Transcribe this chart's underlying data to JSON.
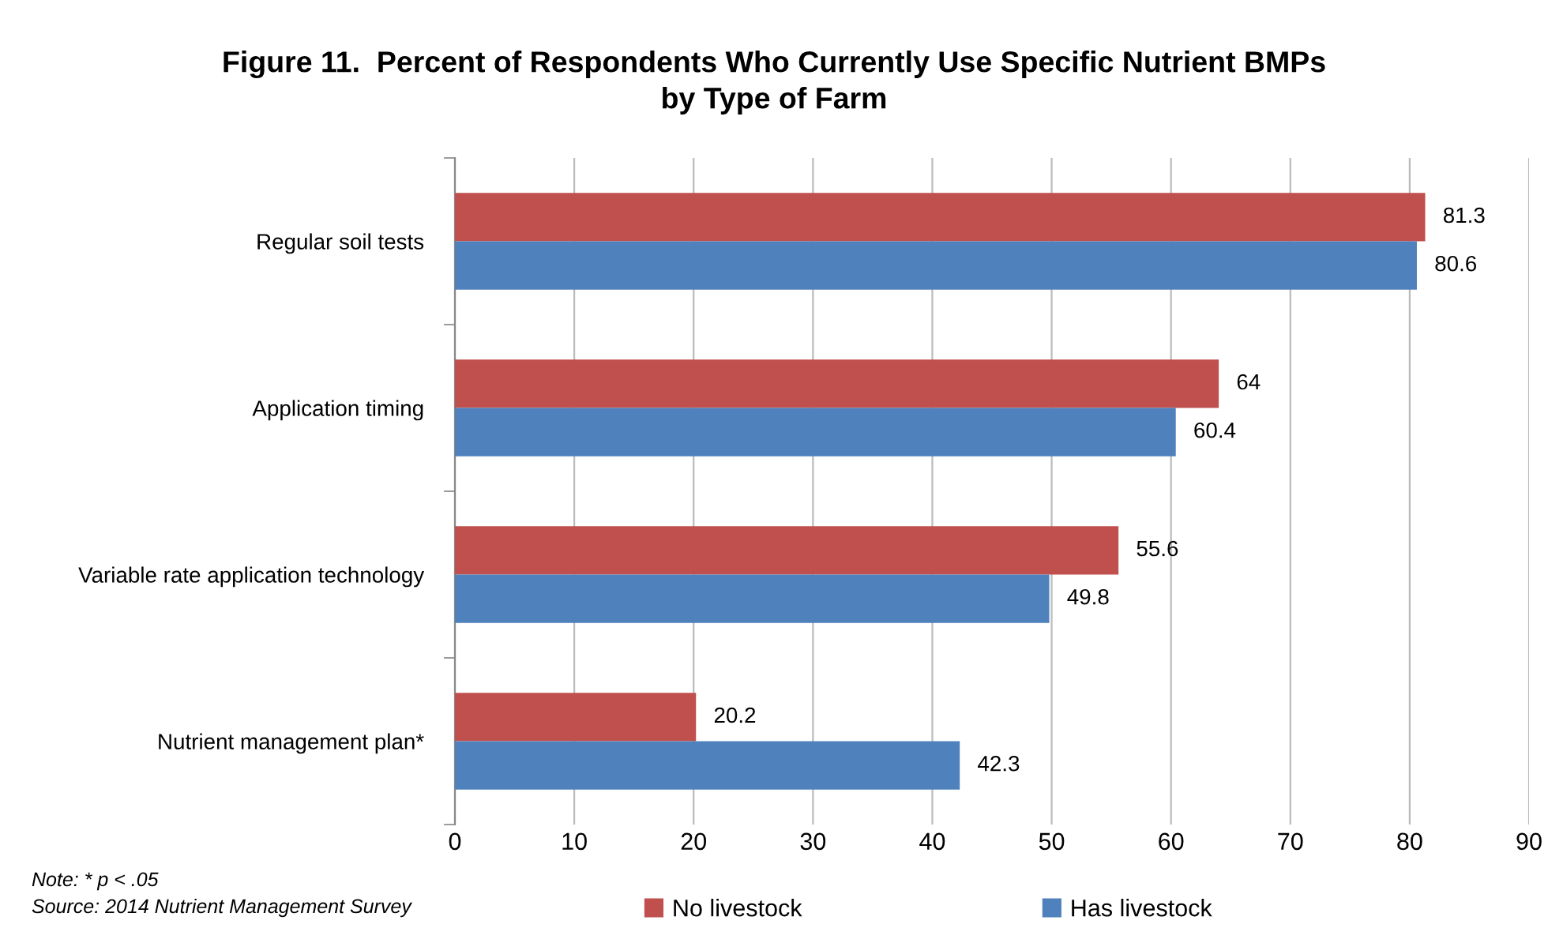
{
  "chart_data": {
    "type": "bar",
    "orientation": "horizontal",
    "title": "Figure 11.  Percent of Respondents Who Currently Use Specific Nutrient BMPs\nby Type of Farm",
    "categories": [
      "Regular soil tests",
      "Application timing",
      "Variable rate application technology",
      "Nutrient management plan*"
    ],
    "series": [
      {
        "name": "No livestock",
        "color": "#c0504d",
        "values": [
          81.3,
          64,
          55.6,
          20.2
        ]
      },
      {
        "name": "Has livestock",
        "color": "#4f81bd",
        "values": [
          80.6,
          60.4,
          49.8,
          42.3
        ]
      }
    ],
    "xlim": [
      0,
      90
    ],
    "xticks": [
      0,
      10,
      20,
      30,
      40,
      50,
      60,
      70,
      80,
      90
    ],
    "grid": "x",
    "legend": "bottom",
    "data_labels": true,
    "annotations": [
      "Note: * p < .05",
      "Source: 2014 Nutrient Management Survey"
    ]
  }
}
